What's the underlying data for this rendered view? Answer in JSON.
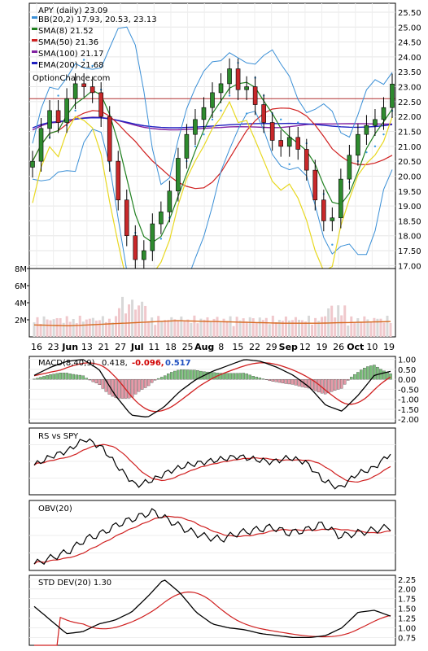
{
  "chart_data": [
    {
      "type": "candlestick",
      "title": "APY (daily) 23.09",
      "legend": [
        {
          "text": "APY (daily) 23.09",
          "color": "#000000"
        },
        {
          "text": "BB(20,2) 17.93, 20.53, 23.13",
          "color": "#3a8fd6"
        },
        {
          "text": "SMA(8) 21.52",
          "color": "#208020"
        },
        {
          "text": "SMA(50) 21.36",
          "color": "#d02020"
        },
        {
          "text": "SMA(100) 21.17",
          "color": "#8020a0"
        },
        {
          "text": "EMA(200) 21.68",
          "color": "#2020c0"
        },
        {
          "text": "OptionChance.com",
          "color": "#000000"
        }
      ],
      "price_ticks": [
        "25.50",
        "25.00",
        "24.50",
        "24.00",
        "23.50",
        "23.00",
        "22.50",
        "22.00",
        "21.50",
        "21.00",
        "20.50",
        "20.00",
        "19.50",
        "19.00",
        "18.50",
        "18.00",
        "17.50",
        "17.00"
      ],
      "ylim": [
        16.9,
        25.8
      ],
      "horizontal_line": 22.6,
      "close": [
        20.5,
        21.6,
        22.2,
        21.8,
        22.6,
        23.1,
        23.0,
        22.8,
        22.0,
        20.5,
        19.2,
        18.0,
        17.2,
        17.5,
        18.4,
        18.8,
        19.5,
        20.6,
        21.4,
        21.9,
        22.3,
        22.8,
        23.1,
        23.6,
        22.9,
        23.0,
        22.4,
        21.8,
        21.2,
        21.0,
        21.3,
        20.9,
        20.2,
        19.2,
        18.5,
        18.6,
        19.9,
        20.7,
        21.4,
        21.7,
        21.9,
        22.3,
        23.09
      ]
    },
    {
      "type": "bar",
      "title": "Volume",
      "y_ticks": [
        "8M",
        "6M",
        "4M",
        "2M"
      ],
      "ylim": [
        0,
        8
      ],
      "x_ticks": [
        "16",
        "23",
        "Jun",
        "13",
        "21",
        "27",
        "Jul",
        "11",
        "18",
        "25",
        "Aug",
        "8",
        "15",
        "22",
        "29",
        "Sep",
        "12",
        "19",
        "26",
        "Oct",
        "10",
        "19"
      ]
    },
    {
      "type": "histogram+line",
      "title": "MACD(8,40,9)",
      "values_text": [
        "0.418,",
        "-0.096,",
        "0.517"
      ],
      "y_ticks": [
        "1.00",
        "0.50",
        "0.00",
        "-0.50",
        "-1.00",
        "-1.50",
        "-2.00"
      ],
      "ylim": [
        -2.2,
        1.15
      ]
    },
    {
      "type": "line",
      "title": "RS vs SPY"
    },
    {
      "type": "line",
      "title": "OBV(20)"
    },
    {
      "type": "line",
      "title": "STD DEV(20) 1.30",
      "y_ticks": [
        "2.25",
        "2.00",
        "1.75",
        "1.50",
        "1.25",
        "1.00",
        "0.75"
      ],
      "ylim": [
        0.55,
        2.35
      ]
    }
  ]
}
